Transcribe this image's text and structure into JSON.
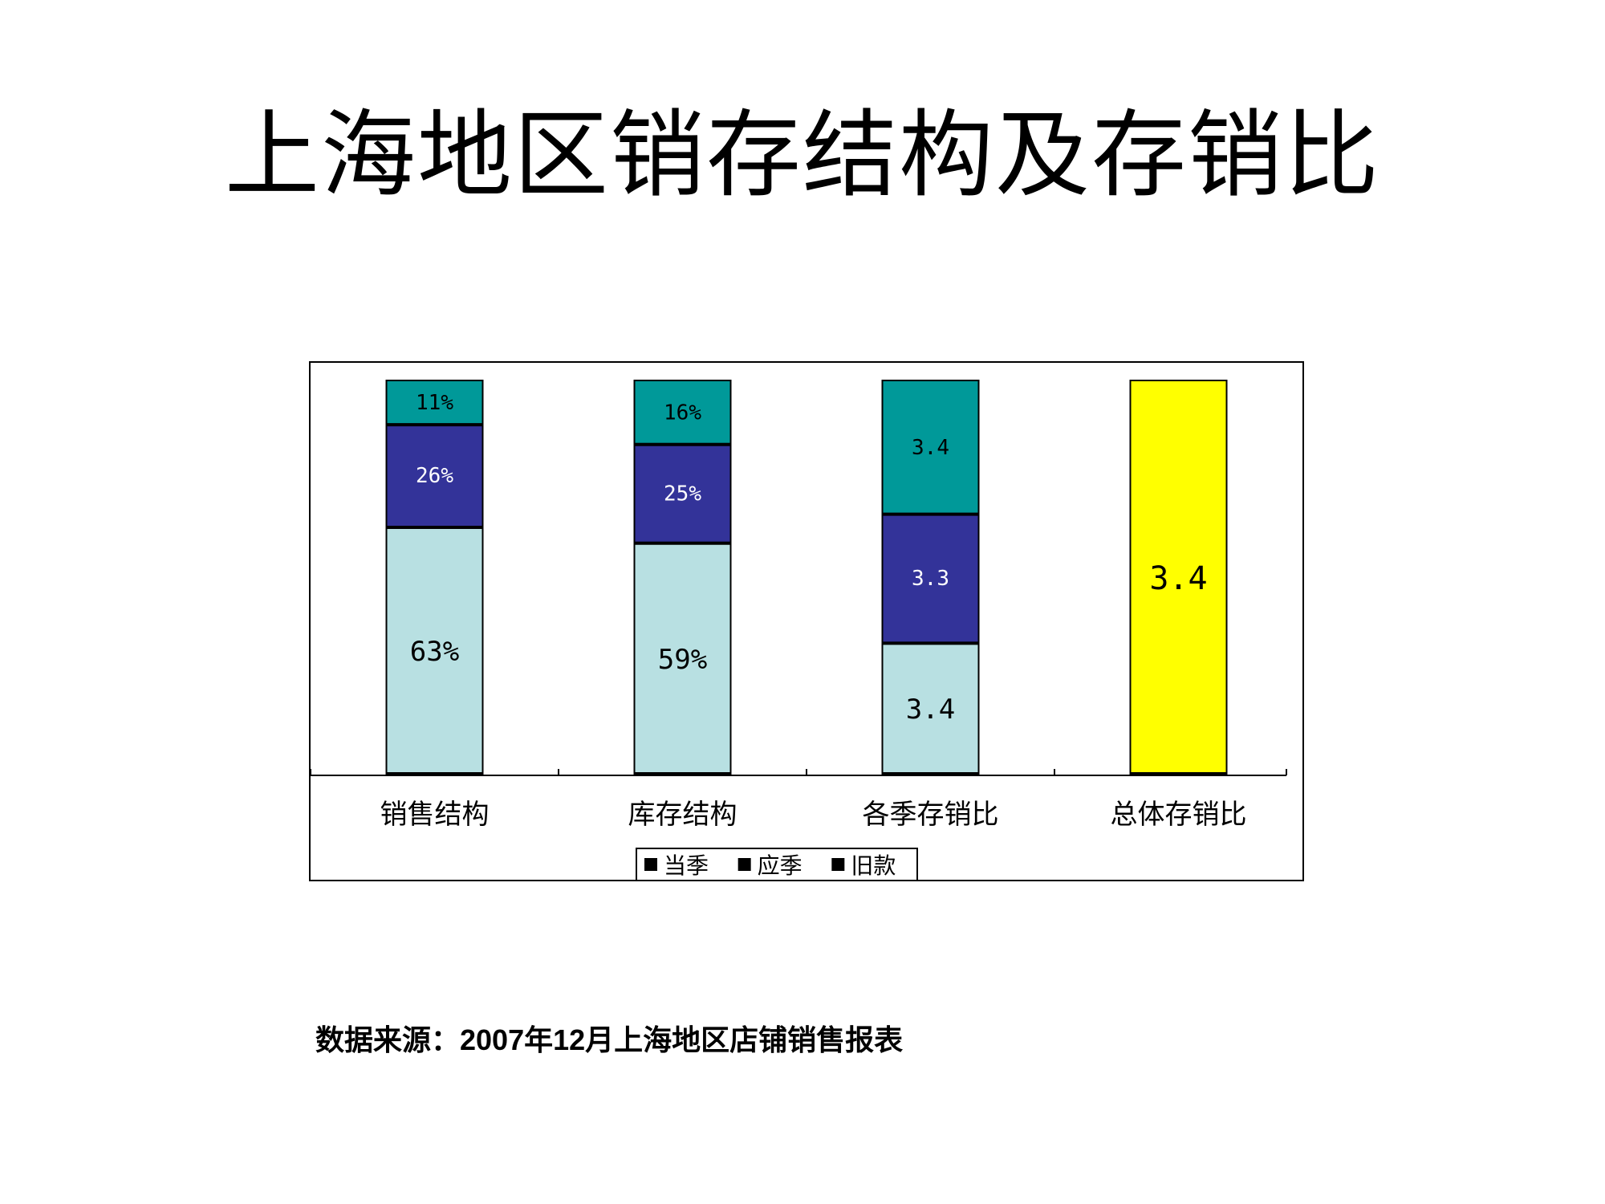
{
  "page": {
    "title": "上海地区销存结构及存销比",
    "source": "数据来源：2007年12月上海地区店铺销售报表"
  },
  "chart_data": {
    "type": "bar",
    "stacked": true,
    "categories": [
      "销售结构",
      "库存结构",
      "各季存销比",
      "总体存销比"
    ],
    "series": [
      {
        "name": "当季",
        "color": "#b8e0e2",
        "values": [
          63,
          59,
          3.4,
          null
        ],
        "labels": [
          "63%",
          "59%",
          "3.4",
          ""
        ]
      },
      {
        "name": "应季",
        "color": "#333399",
        "values": [
          26,
          25,
          3.3,
          null
        ],
        "labels": [
          "26%",
          "25%",
          "3.3",
          ""
        ]
      },
      {
        "name": "旧款",
        "color": "#009999",
        "values": [
          11,
          16,
          3.4,
          null
        ],
        "labels": [
          "11%",
          "16%",
          "3.4",
          ""
        ]
      }
    ],
    "total_bar": {
      "category": "总体存销比",
      "value": 3.4,
      "label": "3.4",
      "color": "#ffff00"
    },
    "legend": {
      "position": "bottom",
      "items": [
        "当季",
        "应季",
        "旧款"
      ],
      "marker_color": "#000000"
    },
    "grid": false,
    "axis_labels_visible": false
  }
}
